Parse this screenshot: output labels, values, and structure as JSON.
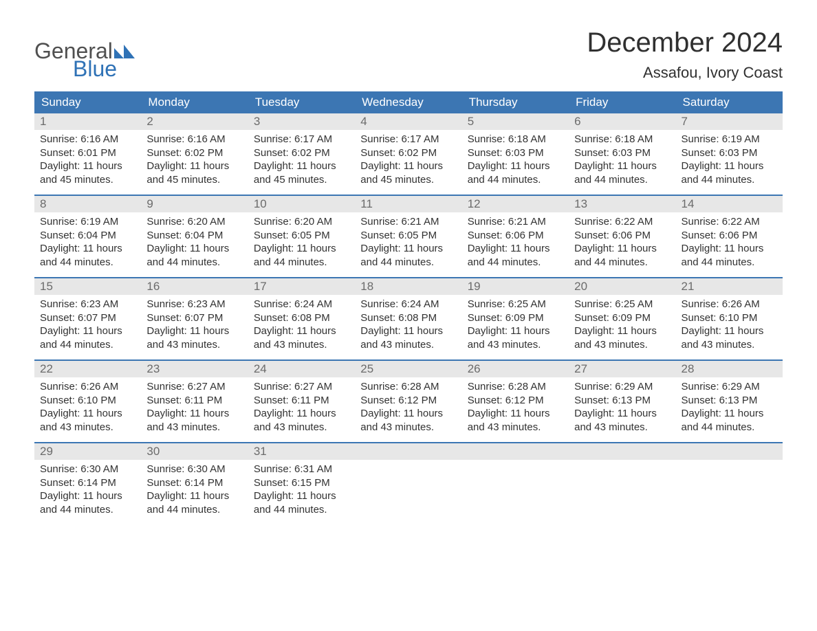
{
  "logo": {
    "general": "General",
    "blue": "Blue",
    "shape_color": "#2f72b6"
  },
  "title": "December 2024",
  "location": "Assafou, Ivory Coast",
  "header_bg": "#3c76b3",
  "header_fg": "#ffffff",
  "daynum_bg": "#e7e7e7",
  "daynum_fg": "#6b6b6b",
  "weekdays": [
    "Sunday",
    "Monday",
    "Tuesday",
    "Wednesday",
    "Thursday",
    "Friday",
    "Saturday"
  ],
  "weeks": [
    [
      {
        "n": "1",
        "sunrise": "Sunrise: 6:16 AM",
        "sunset": "Sunset: 6:01 PM",
        "d1": "Daylight: 11 hours",
        "d2": "and 45 minutes."
      },
      {
        "n": "2",
        "sunrise": "Sunrise: 6:16 AM",
        "sunset": "Sunset: 6:02 PM",
        "d1": "Daylight: 11 hours",
        "d2": "and 45 minutes."
      },
      {
        "n": "3",
        "sunrise": "Sunrise: 6:17 AM",
        "sunset": "Sunset: 6:02 PM",
        "d1": "Daylight: 11 hours",
        "d2": "and 45 minutes."
      },
      {
        "n": "4",
        "sunrise": "Sunrise: 6:17 AM",
        "sunset": "Sunset: 6:02 PM",
        "d1": "Daylight: 11 hours",
        "d2": "and 45 minutes."
      },
      {
        "n": "5",
        "sunrise": "Sunrise: 6:18 AM",
        "sunset": "Sunset: 6:03 PM",
        "d1": "Daylight: 11 hours",
        "d2": "and 44 minutes."
      },
      {
        "n": "6",
        "sunrise": "Sunrise: 6:18 AM",
        "sunset": "Sunset: 6:03 PM",
        "d1": "Daylight: 11 hours",
        "d2": "and 44 minutes."
      },
      {
        "n": "7",
        "sunrise": "Sunrise: 6:19 AM",
        "sunset": "Sunset: 6:03 PM",
        "d1": "Daylight: 11 hours",
        "d2": "and 44 minutes."
      }
    ],
    [
      {
        "n": "8",
        "sunrise": "Sunrise: 6:19 AM",
        "sunset": "Sunset: 6:04 PM",
        "d1": "Daylight: 11 hours",
        "d2": "and 44 minutes."
      },
      {
        "n": "9",
        "sunrise": "Sunrise: 6:20 AM",
        "sunset": "Sunset: 6:04 PM",
        "d1": "Daylight: 11 hours",
        "d2": "and 44 minutes."
      },
      {
        "n": "10",
        "sunrise": "Sunrise: 6:20 AM",
        "sunset": "Sunset: 6:05 PM",
        "d1": "Daylight: 11 hours",
        "d2": "and 44 minutes."
      },
      {
        "n": "11",
        "sunrise": "Sunrise: 6:21 AM",
        "sunset": "Sunset: 6:05 PM",
        "d1": "Daylight: 11 hours",
        "d2": "and 44 minutes."
      },
      {
        "n": "12",
        "sunrise": "Sunrise: 6:21 AM",
        "sunset": "Sunset: 6:06 PM",
        "d1": "Daylight: 11 hours",
        "d2": "and 44 minutes."
      },
      {
        "n": "13",
        "sunrise": "Sunrise: 6:22 AM",
        "sunset": "Sunset: 6:06 PM",
        "d1": "Daylight: 11 hours",
        "d2": "and 44 minutes."
      },
      {
        "n": "14",
        "sunrise": "Sunrise: 6:22 AM",
        "sunset": "Sunset: 6:06 PM",
        "d1": "Daylight: 11 hours",
        "d2": "and 44 minutes."
      }
    ],
    [
      {
        "n": "15",
        "sunrise": "Sunrise: 6:23 AM",
        "sunset": "Sunset: 6:07 PM",
        "d1": "Daylight: 11 hours",
        "d2": "and 44 minutes."
      },
      {
        "n": "16",
        "sunrise": "Sunrise: 6:23 AM",
        "sunset": "Sunset: 6:07 PM",
        "d1": "Daylight: 11 hours",
        "d2": "and 43 minutes."
      },
      {
        "n": "17",
        "sunrise": "Sunrise: 6:24 AM",
        "sunset": "Sunset: 6:08 PM",
        "d1": "Daylight: 11 hours",
        "d2": "and 43 minutes."
      },
      {
        "n": "18",
        "sunrise": "Sunrise: 6:24 AM",
        "sunset": "Sunset: 6:08 PM",
        "d1": "Daylight: 11 hours",
        "d2": "and 43 minutes."
      },
      {
        "n": "19",
        "sunrise": "Sunrise: 6:25 AM",
        "sunset": "Sunset: 6:09 PM",
        "d1": "Daylight: 11 hours",
        "d2": "and 43 minutes."
      },
      {
        "n": "20",
        "sunrise": "Sunrise: 6:25 AM",
        "sunset": "Sunset: 6:09 PM",
        "d1": "Daylight: 11 hours",
        "d2": "and 43 minutes."
      },
      {
        "n": "21",
        "sunrise": "Sunrise: 6:26 AM",
        "sunset": "Sunset: 6:10 PM",
        "d1": "Daylight: 11 hours",
        "d2": "and 43 minutes."
      }
    ],
    [
      {
        "n": "22",
        "sunrise": "Sunrise: 6:26 AM",
        "sunset": "Sunset: 6:10 PM",
        "d1": "Daylight: 11 hours",
        "d2": "and 43 minutes."
      },
      {
        "n": "23",
        "sunrise": "Sunrise: 6:27 AM",
        "sunset": "Sunset: 6:11 PM",
        "d1": "Daylight: 11 hours",
        "d2": "and 43 minutes."
      },
      {
        "n": "24",
        "sunrise": "Sunrise: 6:27 AM",
        "sunset": "Sunset: 6:11 PM",
        "d1": "Daylight: 11 hours",
        "d2": "and 43 minutes."
      },
      {
        "n": "25",
        "sunrise": "Sunrise: 6:28 AM",
        "sunset": "Sunset: 6:12 PM",
        "d1": "Daylight: 11 hours",
        "d2": "and 43 minutes."
      },
      {
        "n": "26",
        "sunrise": "Sunrise: 6:28 AM",
        "sunset": "Sunset: 6:12 PM",
        "d1": "Daylight: 11 hours",
        "d2": "and 43 minutes."
      },
      {
        "n": "27",
        "sunrise": "Sunrise: 6:29 AM",
        "sunset": "Sunset: 6:13 PM",
        "d1": "Daylight: 11 hours",
        "d2": "and 43 minutes."
      },
      {
        "n": "28",
        "sunrise": "Sunrise: 6:29 AM",
        "sunset": "Sunset: 6:13 PM",
        "d1": "Daylight: 11 hours",
        "d2": "and 44 minutes."
      }
    ],
    [
      {
        "n": "29",
        "sunrise": "Sunrise: 6:30 AM",
        "sunset": "Sunset: 6:14 PM",
        "d1": "Daylight: 11 hours",
        "d2": "and 44 minutes."
      },
      {
        "n": "30",
        "sunrise": "Sunrise: 6:30 AM",
        "sunset": "Sunset: 6:14 PM",
        "d1": "Daylight: 11 hours",
        "d2": "and 44 minutes."
      },
      {
        "n": "31",
        "sunrise": "Sunrise: 6:31 AM",
        "sunset": "Sunset: 6:15 PM",
        "d1": "Daylight: 11 hours",
        "d2": "and 44 minutes."
      },
      null,
      null,
      null,
      null
    ]
  ]
}
